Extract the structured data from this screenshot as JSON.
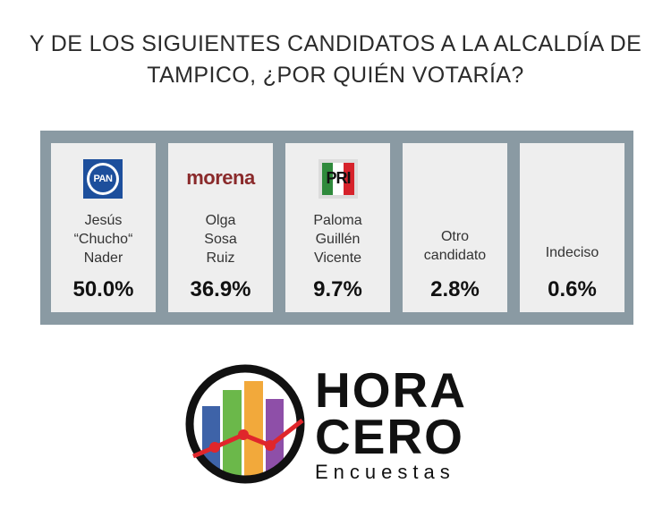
{
  "title_lines": [
    "Y DE LOS SIGUIENTES CANDIDATOS A LA ALCALDÍA DE",
    "TAMPICO, ¿POR QUIÉN VOTARÍA?"
  ],
  "chart_data": {
    "type": "table",
    "title": "Y DE LOS SIGUIENTES CANDIDATOS A LA ALCALDÍA DE TAMPICO, ¿POR QUIÉN VOTARÍA?",
    "categories": [
      "Jesús “Chucho“ Nader",
      "Olga Sosa Ruiz",
      "Paloma Guillén Vicente",
      "Otro candidato",
      "Indeciso"
    ],
    "values": [
      50.0,
      36.9,
      9.7,
      2.8,
      0.6
    ],
    "unit": "%"
  },
  "cards": [
    {
      "party": "PAN",
      "party_logo_text": "PAN",
      "name_lines": [
        "Jesús",
        "“Chucho“",
        "Nader"
      ],
      "percent": "50.0%",
      "logo_color": "#1d4f9c"
    },
    {
      "party": "morena",
      "party_logo_text": "morena",
      "name_lines": [
        "Olga",
        "Sosa",
        "Ruiz"
      ],
      "percent": "36.9%",
      "logo_color": "#8a2a2b"
    },
    {
      "party": "PRI",
      "party_logo_text": "PRI",
      "name_lines": [
        "Paloma",
        "Guillén",
        "Vicente"
      ],
      "percent": "9.7%",
      "logo_color": "#d6222b"
    },
    {
      "party": "",
      "party_logo_text": "",
      "name_lines": [
        "Otro",
        "candidato"
      ],
      "percent": "2.8%",
      "logo_color": ""
    },
    {
      "party": "",
      "party_logo_text": "",
      "name_lines": [
        "Indeciso"
      ],
      "percent": "0.6%",
      "logo_color": ""
    }
  ],
  "brand": {
    "word1": "HORA",
    "word2": "CERO",
    "tagline": "Encuestas",
    "bar_colors": [
      "#3e63a8",
      "#6bb84a",
      "#f2a93b",
      "#8e4fa8"
    ],
    "line_color": "#e0262b"
  }
}
